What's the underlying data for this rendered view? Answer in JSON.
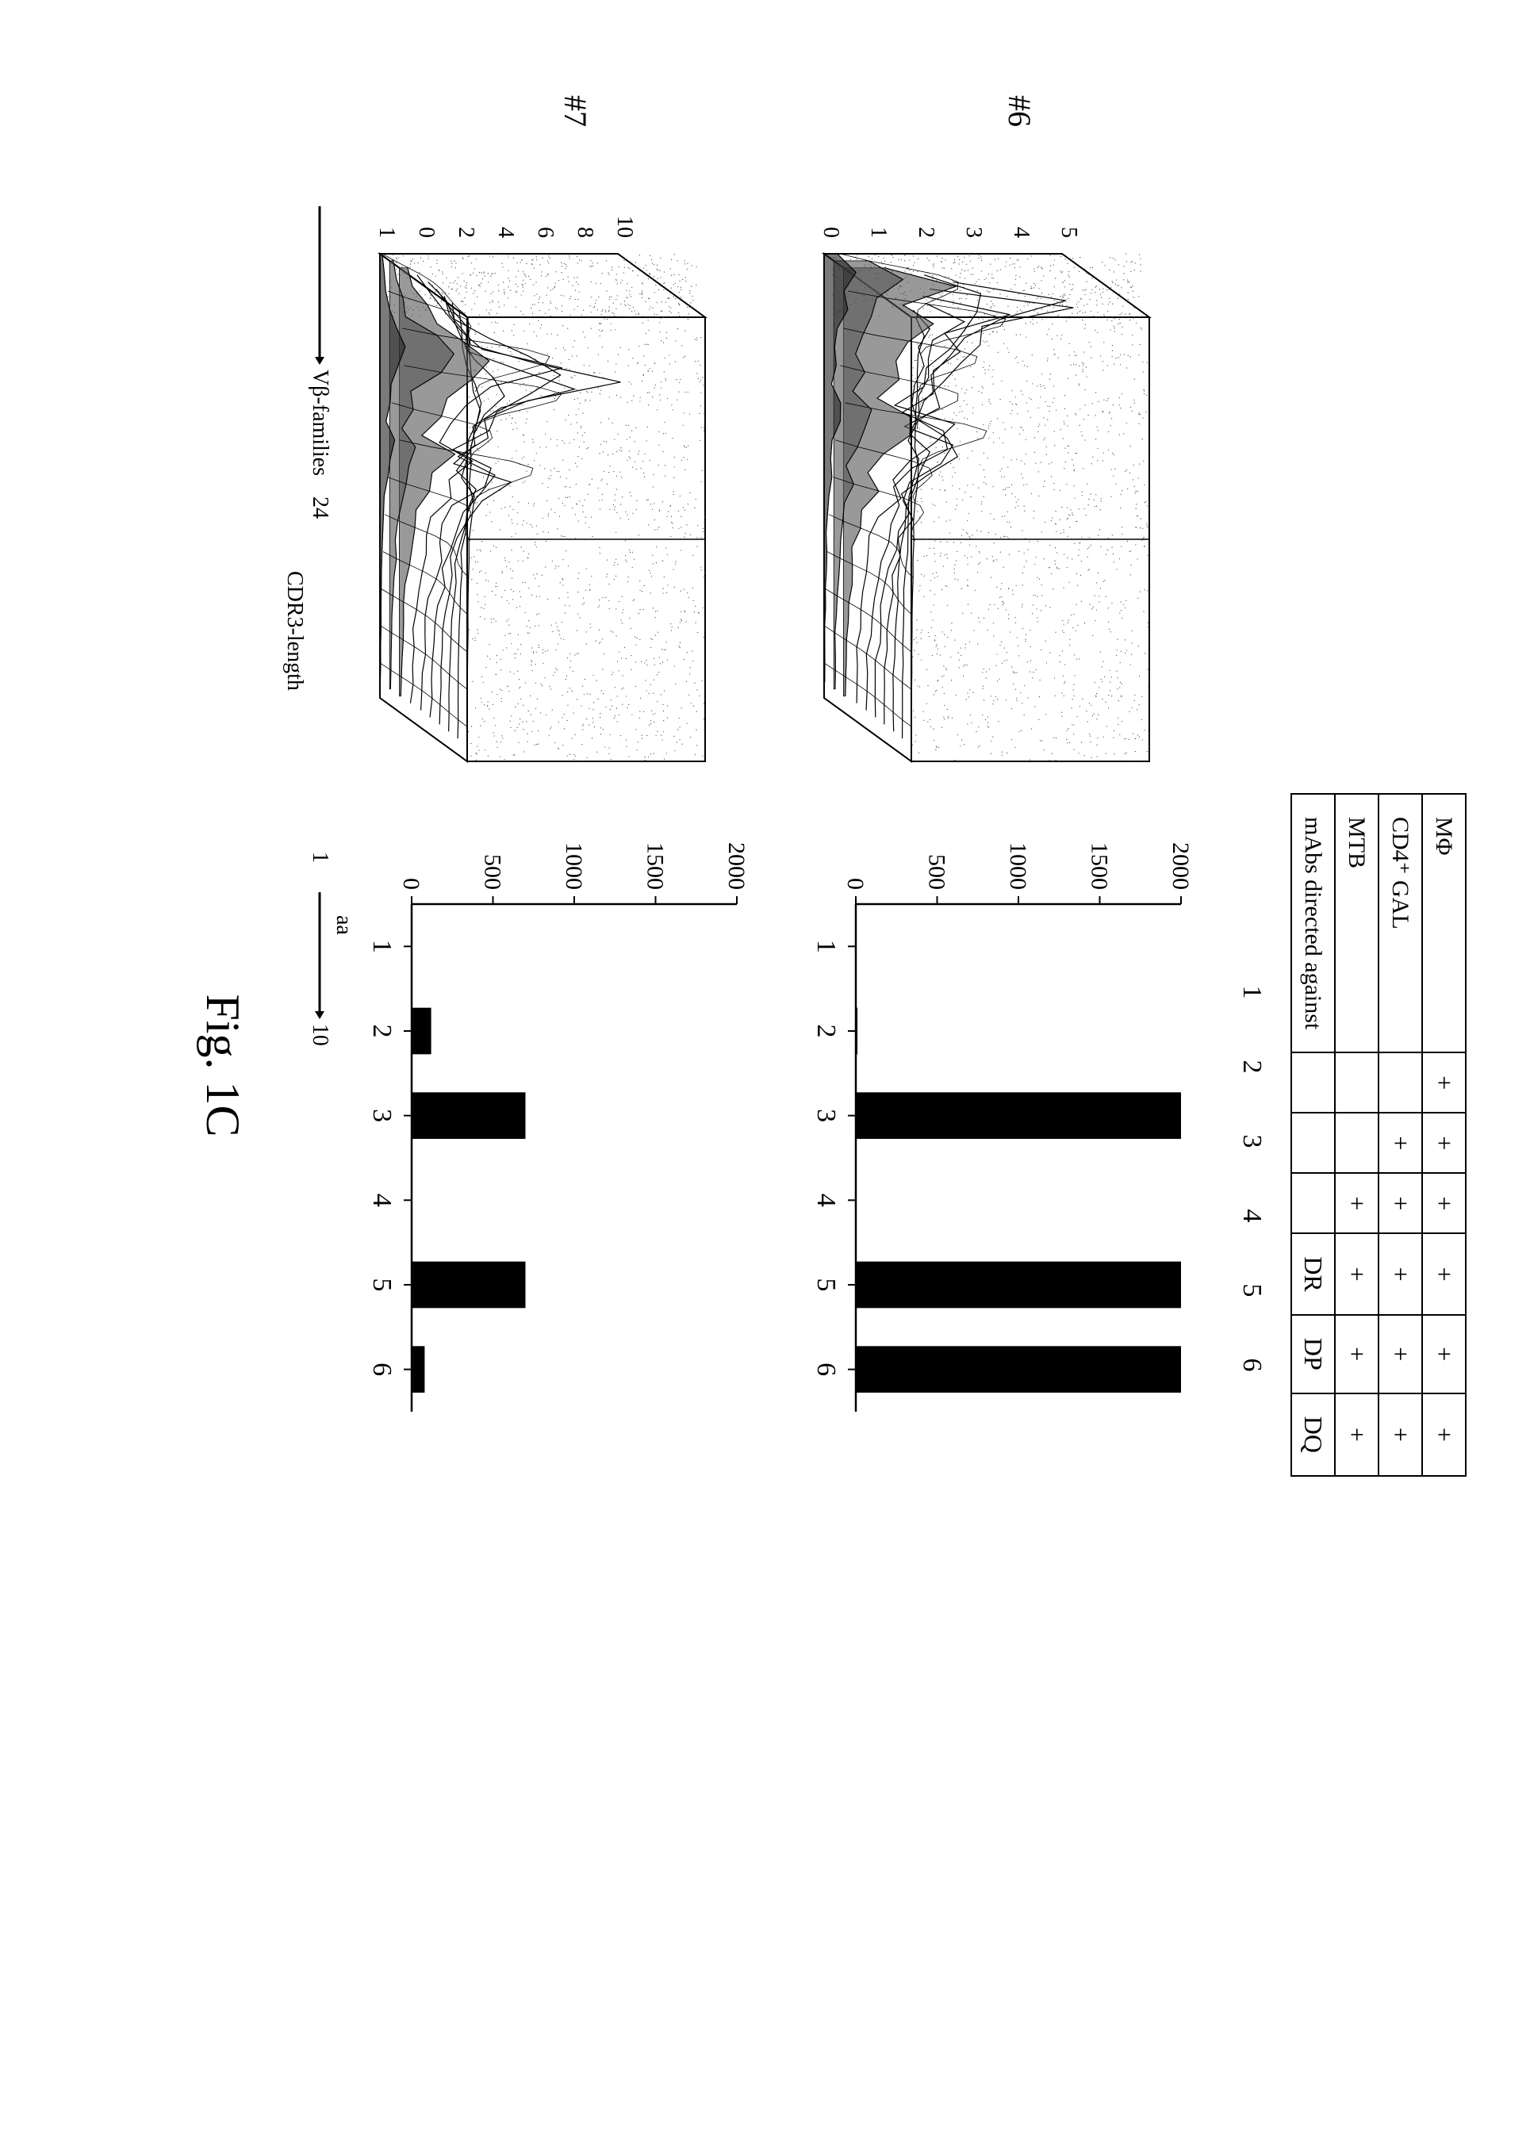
{
  "figure_label": "Fig. 1C",
  "condition_table": {
    "rows": [
      {
        "label": "MΦ",
        "cells": [
          "+",
          "+",
          "+",
          "+",
          "+",
          "+"
        ]
      },
      {
        "label": "CD4⁺ GAL",
        "cells": [
          "",
          "+",
          "+",
          "+",
          "+",
          "+"
        ]
      },
      {
        "label": "MTB",
        "cells": [
          "",
          "",
          "+",
          "+",
          "+",
          "+"
        ]
      },
      {
        "label": "mAbs directed against",
        "cells": [
          "",
          "",
          "",
          "DR",
          "DP",
          "DQ"
        ]
      }
    ],
    "column_numbers": [
      "1",
      "2",
      "3",
      "4",
      "5",
      "6"
    ],
    "border_color": "#000000",
    "cell_fontsize": 32
  },
  "plots3d": [
    {
      "id": "#6",
      "y_ticks": [
        "5",
        "4",
        "3",
        "2",
        "1",
        "0"
      ],
      "ylim": [
        0,
        5
      ],
      "stipple_density": 0.5,
      "peaks": [
        2.0,
        4.9,
        3.0,
        3.2,
        2.4,
        1.8,
        2.0,
        1.2,
        2.6,
        2.2,
        1.4,
        1.0,
        1.2,
        0.8,
        0.6,
        0.4,
        0.4,
        0.3,
        0.2,
        0.2,
        0.1,
        0.1,
        0.1,
        0.1
      ]
    },
    {
      "id": "#7",
      "y_ticks": [
        "10",
        "8",
        "6",
        "4",
        "2",
        "0",
        "1"
      ],
      "ylim": [
        0,
        10
      ],
      "stipple_density": 0.5,
      "peaks": [
        0.6,
        1.2,
        2.0,
        3.0,
        5.5,
        9.5,
        6.0,
        3.4,
        3.0,
        1.6,
        4.8,
        3.0,
        2.0,
        1.4,
        1.2,
        1.0,
        0.8,
        0.6,
        0.4,
        0.3,
        0.3,
        0.2,
        0.2,
        0.1
      ]
    }
  ],
  "axis_labels": {
    "vbeta": "Vβ-families",
    "vbeta_end": "24",
    "cdr3": "CDR3-length",
    "cdr3_start": "1",
    "cdr3_end": "10",
    "aa": "aa",
    "fontsize": 28
  },
  "barcharts": [
    {
      "id": "#6",
      "y_ticks": [
        "2000",
        "1500",
        "1000",
        "500",
        "0"
      ],
      "ylim": [
        0,
        2000
      ],
      "x_labels": [
        "1",
        "2",
        "3",
        "4",
        "5",
        "6"
      ],
      "values": [
        0,
        10,
        2000,
        0,
        2000,
        2000
      ],
      "bar_color": "#000000",
      "bar_width": 0.55
    },
    {
      "id": "#7",
      "y_ticks": [
        "2000",
        "1500",
        "1000",
        "500",
        "0"
      ],
      "ylim": [
        0,
        2000
      ],
      "x_labels": [
        "1",
        "2",
        "3",
        "4",
        "5",
        "6"
      ],
      "values": [
        0,
        120,
        700,
        0,
        700,
        80
      ],
      "bar_color": "#000000",
      "bar_width": 0.55
    }
  ],
  "colors": {
    "background": "#ffffff",
    "ink": "#000000",
    "stipple": "#444444"
  }
}
